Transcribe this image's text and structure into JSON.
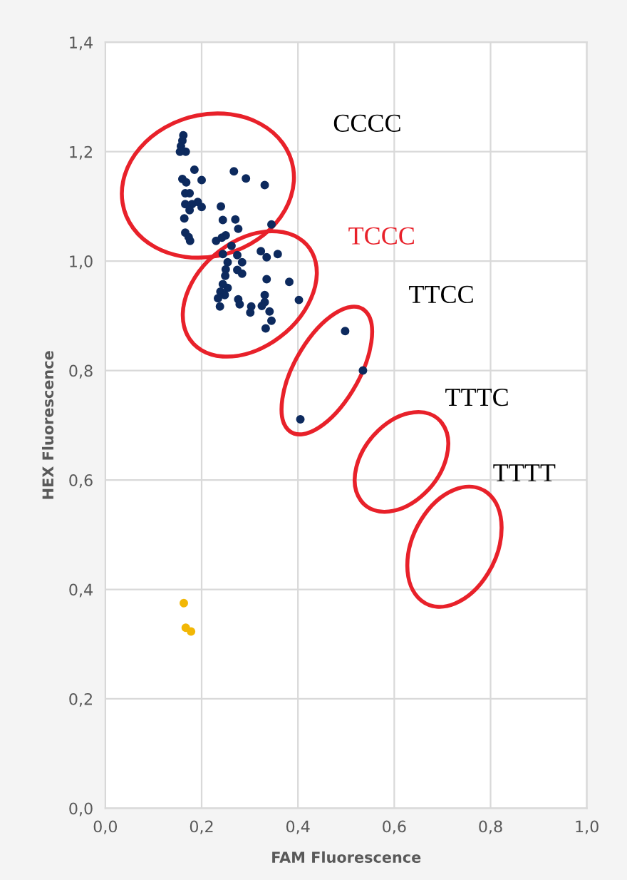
{
  "chart_data": {
    "type": "scatter",
    "xlabel": "FAM Fluorescence",
    "ylabel": "HEX Fluorescence",
    "xlim": [
      0,
      1
    ],
    "ylim": [
      0,
      1.4
    ],
    "xticks": [
      {
        "value": 0,
        "label": "0,0"
      },
      {
        "value": 0.2,
        "label": "0,2"
      },
      {
        "value": 0.4,
        "label": "0,4"
      },
      {
        "value": 0.6,
        "label": "0,6"
      },
      {
        "value": 0.8,
        "label": "0,8"
      },
      {
        "value": 1,
        "label": "1,0"
      }
    ],
    "yticks": [
      {
        "value": 0,
        "label": "0,0"
      },
      {
        "value": 0.2,
        "label": "0,2"
      },
      {
        "value": 0.4,
        "label": "0,4"
      },
      {
        "value": 0.6,
        "label": "0,6"
      },
      {
        "value": 0.8,
        "label": "0,8"
      },
      {
        "value": 1,
        "label": "1,0"
      },
      {
        "value": 1.2,
        "label": "1,2"
      },
      {
        "value": 1.4,
        "label": "1,4"
      }
    ],
    "grid": true,
    "marker": "circle",
    "legend": false,
    "series": [
      {
        "color": "#0d2a5e",
        "x": [
          0.162,
          0.16,
          0.157,
          0.167,
          0.155,
          0.185,
          0.267,
          0.292,
          0.331,
          0.16,
          0.168,
          0.2,
          0.166,
          0.175,
          0.166,
          0.18,
          0.192,
          0.2,
          0.175,
          0.24,
          0.164,
          0.244,
          0.27,
          0.276,
          0.345,
          0.166,
          0.173,
          0.176,
          0.23,
          0.242,
          0.25,
          0.262,
          0.244,
          0.274,
          0.323,
          0.335,
          0.358,
          0.254,
          0.284,
          0.25,
          0.274,
          0.284,
          0.249,
          0.335,
          0.382,
          0.244,
          0.254,
          0.239,
          0.248,
          0.234,
          0.331,
          0.276,
          0.402,
          0.238,
          0.279,
          0.331,
          0.325,
          0.303,
          0.301,
          0.341,
          0.345,
          0.333,
          0.498,
          0.535,
          0.405
        ],
        "values": [
          1.23,
          1.22,
          1.21,
          1.2,
          1.2,
          1.167,
          1.164,
          1.151,
          1.139,
          1.15,
          1.144,
          1.148,
          1.124,
          1.124,
          1.104,
          1.104,
          1.108,
          1.099,
          1.093,
          1.1,
          1.078,
          1.075,
          1.076,
          1.059,
          1.067,
          1.052,
          1.044,
          1.037,
          1.037,
          1.043,
          1.047,
          1.028,
          1.013,
          1.011,
          1.018,
          1.007,
          1.013,
          0.998,
          0.998,
          0.985,
          0.984,
          0.977,
          0.973,
          0.967,
          0.962,
          0.958,
          0.951,
          0.944,
          0.938,
          0.932,
          0.938,
          0.93,
          0.929,
          0.917,
          0.921,
          0.925,
          0.918,
          0.917,
          0.906,
          0.908,
          0.891,
          0.877,
          0.872,
          0.8,
          0.711
        ]
      },
      {
        "color": "#f2b705",
        "x": [
          0.163,
          0.167,
          0.178
        ],
        "values": [
          0.375,
          0.33,
          0.323
        ]
      }
    ],
    "annotations": [
      "CCCC",
      "TCCC",
      "TTCC",
      "TTTC",
      "TTTT"
    ]
  }
}
